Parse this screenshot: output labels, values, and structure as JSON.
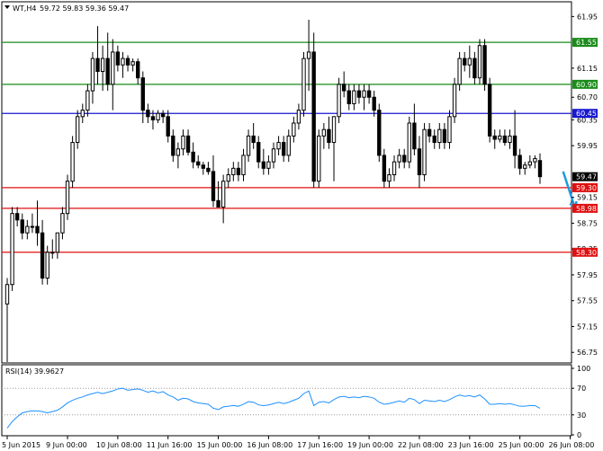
{
  "header": {
    "symbol": "WT,H4",
    "ohlc": "59.72 59.83 59.36 59.47"
  },
  "chart_data": {
    "type": "candlestick",
    "symbol": "WT",
    "timeframe": "H4",
    "ylim": [
      56.6,
      62.15
    ],
    "y_ticks": [
      {
        "v": 61.95,
        "label": "61.95"
      },
      {
        "v": 61.55,
        "label": "61.55"
      },
      {
        "v": 61.15,
        "label": "61.15"
      },
      {
        "v": 60.9,
        "label": "60.90"
      },
      {
        "v": 60.7,
        "label": "60.70"
      },
      {
        "v": 60.45,
        "label": "60.45"
      },
      {
        "v": 60.35,
        "label": "60.35"
      },
      {
        "v": 59.95,
        "label": "59.95"
      },
      {
        "v": 59.55,
        "label": "59.55"
      },
      {
        "v": 59.3,
        "label": "59.30"
      },
      {
        "v": 59.15,
        "label": "59.15"
      },
      {
        "v": 58.98,
        "label": "58.98"
      },
      {
        "v": 58.75,
        "label": "58.75"
      },
      {
        "v": 58.35,
        "label": "58.35"
      },
      {
        "v": 58.3,
        "label": "58.30"
      },
      {
        "v": 57.95,
        "label": "57.95"
      },
      {
        "v": 57.55,
        "label": "57.55"
      },
      {
        "v": 57.15,
        "label": "57.15"
      },
      {
        "v": 56.75,
        "label": "56.75"
      }
    ],
    "x_labels": [
      {
        "i": 0,
        "label": "5 Jun 2015"
      },
      {
        "i": 12,
        "label": "9 Jun 00:00"
      },
      {
        "i": 22,
        "label": "10 Jun 08:00"
      },
      {
        "i": 32,
        "label": "11 Jun 16:00"
      },
      {
        "i": 42,
        "label": "15 Jun 00:00"
      },
      {
        "i": 52,
        "label": "16 Jun 08:00"
      },
      {
        "i": 62,
        "label": "17 Jun 16:00"
      },
      {
        "i": 72,
        "label": "19 Jun 00:00"
      },
      {
        "i": 82,
        "label": "22 Jun 08:00"
      },
      {
        "i": 92,
        "label": "23 Jun 16:00"
      },
      {
        "i": 102,
        "label": "25 Jun 00:00"
      },
      {
        "i": 112,
        "label": "26 Jun 08:00"
      }
    ],
    "candles": [
      [
        57.5,
        57.9,
        56.6,
        57.8
      ],
      [
        57.8,
        59.0,
        57.7,
        58.9
      ],
      [
        58.9,
        59.0,
        58.7,
        58.8
      ],
      [
        58.8,
        58.9,
        58.5,
        58.6
      ],
      [
        58.6,
        58.8,
        58.5,
        58.7
      ],
      [
        58.7,
        58.9,
        58.6,
        58.7
      ],
      [
        58.7,
        59.1,
        58.4,
        58.6
      ],
      [
        58.6,
        58.8,
        57.8,
        57.9
      ],
      [
        57.9,
        58.4,
        57.8,
        58.3
      ],
      [
        58.3,
        58.5,
        58.2,
        58.3
      ],
      [
        58.3,
        58.6,
        58.2,
        58.6
      ],
      [
        58.6,
        59.0,
        58.5,
        58.9
      ],
      [
        58.9,
        59.5,
        58.8,
        59.4
      ],
      [
        59.4,
        60.1,
        59.3,
        60.0
      ],
      [
        60.0,
        60.5,
        59.9,
        60.4
      ],
      [
        60.4,
        60.6,
        60.3,
        60.5
      ],
      [
        60.5,
        60.9,
        60.4,
        60.8
      ],
      [
        60.8,
        61.4,
        60.6,
        61.3
      ],
      [
        61.3,
        61.8,
        60.9,
        61.1
      ],
      [
        61.1,
        61.5,
        60.8,
        61.3
      ],
      [
        61.3,
        61.7,
        60.8,
        60.9
      ],
      [
        60.9,
        61.6,
        60.5,
        61.4
      ],
      [
        61.4,
        61.5,
        61.1,
        61.2
      ],
      [
        61.2,
        61.4,
        61.0,
        61.3
      ],
      [
        61.3,
        61.35,
        61.1,
        61.2
      ],
      [
        61.2,
        61.3,
        61.1,
        61.25
      ],
      [
        61.25,
        61.3,
        60.9,
        61.0
      ],
      [
        61.0,
        61.1,
        60.3,
        60.5
      ],
      [
        60.5,
        60.6,
        60.3,
        60.4
      ],
      [
        60.4,
        60.5,
        60.2,
        60.35
      ],
      [
        60.35,
        60.5,
        60.3,
        60.45
      ],
      [
        60.45,
        60.5,
        60.3,
        60.4
      ],
      [
        60.4,
        60.5,
        60.0,
        60.1
      ],
      [
        60.1,
        60.2,
        59.7,
        59.8
      ],
      [
        59.8,
        60.0,
        59.6,
        59.9
      ],
      [
        59.9,
        60.2,
        59.8,
        60.1
      ],
      [
        60.1,
        60.2,
        59.8,
        59.85
      ],
      [
        59.85,
        60.0,
        59.6,
        59.7
      ],
      [
        59.7,
        59.8,
        59.6,
        59.65
      ],
      [
        59.65,
        59.7,
        59.5,
        59.6
      ],
      [
        59.6,
        59.7,
        59.5,
        59.55
      ],
      [
        59.55,
        59.8,
        59.0,
        59.1
      ],
      [
        59.1,
        59.4,
        59.0,
        59.0
      ],
      [
        59.0,
        59.5,
        58.75,
        59.4
      ],
      [
        59.4,
        59.6,
        59.3,
        59.5
      ],
      [
        59.5,
        59.7,
        59.4,
        59.6
      ],
      [
        59.6,
        59.7,
        59.4,
        59.5
      ],
      [
        59.5,
        59.9,
        59.4,
        59.8
      ],
      [
        59.8,
        60.2,
        59.7,
        60.1
      ],
      [
        60.1,
        60.3,
        59.9,
        60.0
      ],
      [
        60.0,
        60.1,
        59.6,
        59.7
      ],
      [
        59.7,
        59.9,
        59.5,
        59.6
      ],
      [
        59.6,
        59.8,
        59.5,
        59.7
      ],
      [
        59.7,
        60.0,
        59.6,
        59.9
      ],
      [
        59.9,
        60.1,
        59.8,
        60.0
      ],
      [
        60.0,
        60.1,
        59.7,
        59.8
      ],
      [
        59.8,
        60.2,
        59.7,
        60.1
      ],
      [
        60.1,
        60.4,
        60.0,
        60.3
      ],
      [
        60.3,
        60.6,
        60.2,
        60.5
      ],
      [
        60.5,
        61.4,
        60.4,
        61.3
      ],
      [
        61.3,
        61.9,
        60.8,
        61.4
      ],
      [
        61.4,
        61.7,
        59.3,
        59.4
      ],
      [
        59.4,
        60.2,
        59.3,
        60.1
      ],
      [
        60.1,
        60.3,
        59.9,
        60.2
      ],
      [
        60.2,
        60.4,
        59.9,
        60.0
      ],
      [
        60.0,
        60.4,
        59.4,
        60.4
      ],
      [
        60.4,
        61.0,
        60.3,
        60.9
      ],
      [
        60.9,
        61.1,
        60.7,
        60.8
      ],
      [
        60.8,
        60.9,
        60.5,
        60.6
      ],
      [
        60.6,
        60.9,
        60.5,
        60.8
      ],
      [
        60.8,
        60.9,
        60.6,
        60.7
      ],
      [
        60.7,
        60.9,
        60.5,
        60.8
      ],
      [
        60.8,
        60.9,
        60.6,
        60.7
      ],
      [
        60.7,
        60.8,
        60.4,
        60.5
      ],
      [
        60.5,
        60.6,
        59.7,
        59.8
      ],
      [
        59.8,
        59.9,
        59.3,
        59.4
      ],
      [
        59.4,
        59.6,
        59.3,
        59.5
      ],
      [
        59.5,
        59.8,
        59.4,
        59.7
      ],
      [
        59.7,
        59.9,
        59.6,
        59.8
      ],
      [
        59.8,
        59.9,
        59.6,
        59.7
      ],
      [
        59.7,
        60.4,
        59.6,
        60.3
      ],
      [
        60.3,
        60.6,
        59.8,
        59.9
      ],
      [
        59.9,
        60.1,
        59.3,
        59.5
      ],
      [
        59.5,
        60.3,
        59.4,
        60.2
      ],
      [
        60.2,
        60.3,
        60.0,
        60.1
      ],
      [
        60.1,
        60.2,
        59.9,
        60.0
      ],
      [
        60.0,
        60.3,
        59.9,
        60.2
      ],
      [
        60.2,
        60.3,
        59.9,
        60.0
      ],
      [
        60.0,
        60.5,
        59.9,
        60.4
      ],
      [
        60.4,
        61.0,
        60.3,
        60.9
      ],
      [
        60.9,
        61.4,
        60.8,
        61.3
      ],
      [
        61.3,
        61.4,
        61.1,
        61.2
      ],
      [
        61.2,
        61.5,
        61.0,
        61.3
      ],
      [
        61.3,
        61.4,
        60.9,
        61.0
      ],
      [
        61.0,
        61.6,
        60.9,
        61.5
      ],
      [
        61.5,
        61.6,
        60.8,
        60.9
      ],
      [
        60.9,
        61.0,
        60.0,
        60.1
      ],
      [
        60.1,
        60.2,
        59.9,
        60.05
      ],
      [
        60.05,
        60.2,
        60.0,
        60.1
      ],
      [
        60.1,
        60.2,
        59.95,
        60.0
      ],
      [
        60.0,
        60.2,
        59.9,
        60.1
      ],
      [
        60.1,
        60.5,
        59.6,
        59.8
      ],
      [
        59.8,
        59.9,
        59.5,
        59.6
      ],
      [
        59.6,
        59.7,
        59.5,
        59.65
      ],
      [
        59.65,
        59.8,
        59.6,
        59.7
      ],
      [
        59.7,
        59.8,
        59.6,
        59.75
      ],
      [
        59.72,
        59.83,
        59.36,
        59.47
      ]
    ],
    "levels": [
      {
        "value": 61.55,
        "label": "61.55",
        "color": "#1a8c1a"
      },
      {
        "value": 60.9,
        "label": "60.90",
        "color": "#1a8c1a"
      },
      {
        "value": 60.45,
        "label": "60.45",
        "color": "#1818d0"
      },
      {
        "value": 59.3,
        "label": "59.30",
        "color": "#e01010"
      },
      {
        "value": 58.98,
        "label": "58.98",
        "color": "#e01010"
      },
      {
        "value": 58.3,
        "label": "58.30",
        "color": "#e01010"
      }
    ],
    "current_price": {
      "value": 59.47,
      "label": "59.47"
    },
    "arrow": {
      "from": [
        110.6,
        59.55
      ],
      "to": [
        113.0,
        58.98
      ],
      "color": "#1e9be0"
    },
    "rsi": {
      "label": "RSI(14) 39.9627",
      "ylim": [
        0,
        100
      ],
      "ticks": [
        100,
        70,
        30,
        0
      ],
      "values": [
        10,
        20,
        27,
        33,
        35,
        36,
        36,
        35,
        33,
        35,
        37,
        42,
        48,
        52,
        55,
        57,
        60,
        62,
        64,
        62,
        64,
        66,
        69,
        70,
        67,
        68,
        69,
        67,
        64,
        66,
        63,
        65,
        60,
        57,
        52,
        55,
        54,
        50,
        48,
        47,
        46,
        40,
        38,
        42,
        43,
        44,
        43,
        46,
        50,
        49,
        45,
        44,
        45,
        47,
        49,
        47,
        49,
        52,
        55,
        62,
        66,
        44,
        49,
        50,
        48,
        53,
        57,
        58,
        56,
        57,
        56,
        58,
        57,
        55,
        49,
        46,
        47,
        49,
        51,
        49,
        55,
        53,
        47,
        52,
        51,
        50,
        52,
        50,
        53,
        57,
        60,
        58,
        59,
        57,
        60,
        54,
        46,
        46,
        47,
        46,
        47,
        45,
        43,
        43,
        44,
        44,
        40
      ]
    },
    "rsi_labels": {
      "r100": "100",
      "r70": "70",
      "r30": "30",
      "r0": "0"
    }
  }
}
